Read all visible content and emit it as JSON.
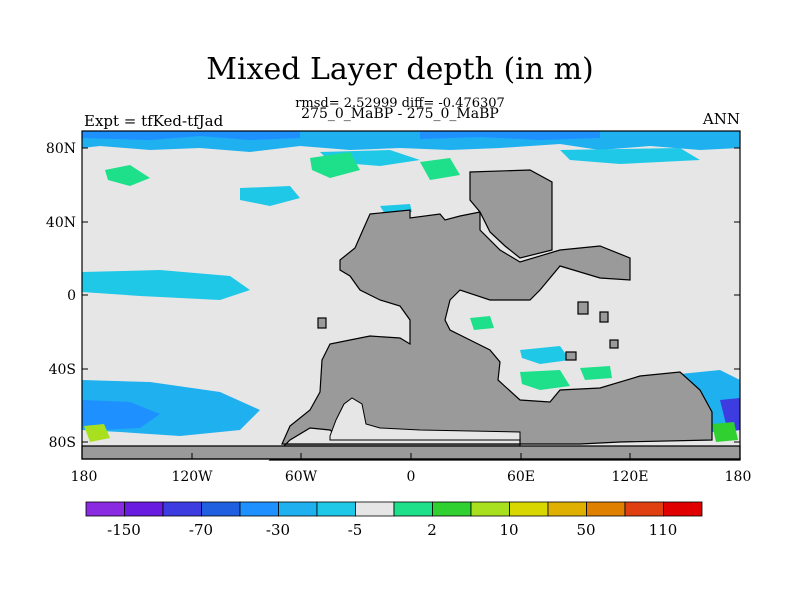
{
  "title": "Mixed Layer depth (in m)",
  "stats": "rmsd= 2.52999 diff= -0.476307",
  "case_line": "275_0_MaBP - 275_0_MaBP",
  "left_label": "Expt = tfKed-tfJad",
  "right_label": "ANN",
  "map": {
    "lat_ticks": [
      "80N",
      "40N",
      "0",
      "40S",
      "80S"
    ],
    "lon_ticks": [
      "180",
      "120W",
      "60W",
      "0",
      "60E",
      "120E",
      "180"
    ]
  },
  "colorbar": {
    "colors": [
      "#8a2be2",
      "#6a1be0",
      "#3c3ce0",
      "#1f5fe0",
      "#1e90ff",
      "#1fb0f0",
      "#20c8e8",
      "#e6e6e6",
      "#1ee08a",
      "#30d030",
      "#a8e020",
      "#d8d800",
      "#e0b000",
      "#e08000",
      "#e04010",
      "#e00000"
    ],
    "labels": [
      "-150",
      "-70",
      "-30",
      "-5",
      "2",
      "10",
      "50",
      "110"
    ]
  }
}
